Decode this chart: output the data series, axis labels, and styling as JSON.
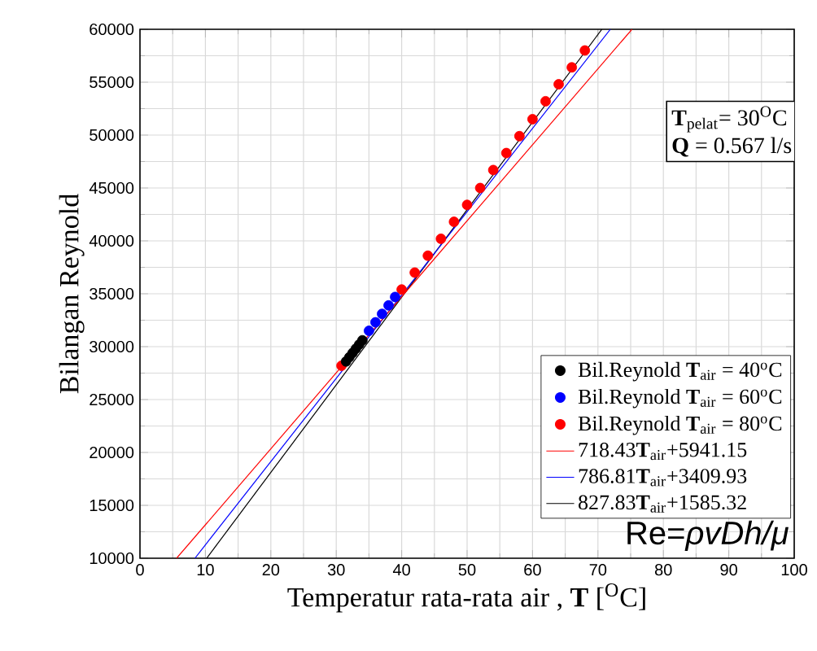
{
  "chart_data": {
    "type": "scatter",
    "xlabel": "Temperatur rata-rata air , **T** [$^{O}$C]",
    "ylabel": "Bilangan Reynold",
    "xlim": [
      0,
      100
    ],
    "ylim": [
      10000,
      60000
    ],
    "xticks": [
      0,
      10,
      20,
      30,
      40,
      50,
      60,
      70,
      80,
      90,
      100
    ],
    "yticks": [
      10000,
      15000,
      20000,
      25000,
      30000,
      35000,
      40000,
      45000,
      50000,
      55000,
      60000
    ],
    "grid": true,
    "legend": "right",
    "annotations": [
      "**T**$_{pelat}$= 30$^{O}$C",
      "**Q** = 0.567 l/s",
      "Re=*ρvDh/μ*"
    ],
    "series": [
      {
        "name": "Bil.Reynold **T**$_{air}$ = 40$^{o}$C",
        "color": "#000000",
        "marker": "circle",
        "x": [
          31.5,
          32,
          32.5,
          33,
          33.5,
          34
        ],
        "values": [
          28600,
          29000,
          29400,
          29800,
          30200,
          30600
        ]
      },
      {
        "name": "Bil.Reynold **T**$_{air}$ = 60$^{o}$C",
        "color": "#0000ff",
        "marker": "circle",
        "x": [
          35,
          36,
          37,
          38,
          39
        ],
        "values": [
          31500,
          32300,
          33100,
          33900,
          34700
        ]
      },
      {
        "name": "Bil.Reynold **T**$_{air}$ = 80$^{o}$C",
        "color": "#ff0000",
        "marker": "circle",
        "x": [
          30.8,
          40,
          42,
          44,
          46,
          48,
          50,
          52,
          54,
          56,
          58,
          60,
          62,
          64,
          66,
          68
        ],
        "values": [
          28200,
          35400,
          37000,
          38600,
          40200,
          41800,
          43400,
          45000,
          46700,
          48300,
          49900,
          51500,
          53200,
          54800,
          56400,
          58000
        ]
      },
      {
        "name": "718.43**T**$_{air}$+5941.15",
        "type": "line",
        "marker": "none",
        "color": "#ff0000",
        "x": [
          5.6,
          75.2
        ],
        "values": [
          10000,
          60000
        ]
      },
      {
        "name": "786.81**T**$_{air}$+3409.93",
        "type": "line",
        "marker": "none",
        "color": "#0000ff",
        "x": [
          8.4,
          71.9
        ],
        "values": [
          10000,
          60000
        ]
      },
      {
        "name": "827.83**T**$_{air}$+1585.32",
        "type": "line",
        "marker": "none",
        "color": "#000000",
        "x": [
          10.2,
          70.6
        ],
        "values": [
          10000,
          60000
        ]
      }
    ]
  }
}
